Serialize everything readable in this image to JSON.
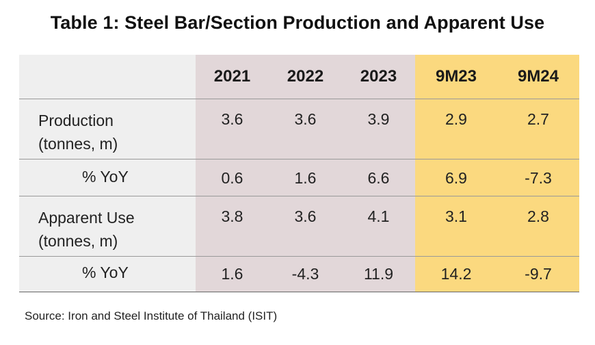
{
  "title": "Table 1: Steel Bar/Section Production and Apparent Use",
  "columns": [
    "2021",
    "2022",
    "2023",
    "9M23",
    "9M24"
  ],
  "rows": [
    {
      "label_line1": "Production",
      "label_line2": "(tonnes, m)",
      "values": [
        "3.6",
        "3.6",
        "3.9",
        "2.9",
        "2.7"
      ]
    },
    {
      "label_line1": "% YoY",
      "label_line2": "",
      "values": [
        "0.6",
        "1.6",
        "6.6",
        "6.9",
        "-7.3"
      ]
    },
    {
      "label_line1": "Apparent Use",
      "label_line2": "(tonnes, m)",
      "values": [
        "3.8",
        "3.6",
        "4.1",
        "3.1",
        "2.8"
      ]
    },
    {
      "label_line1": "% YoY",
      "label_line2": "",
      "values": [
        "1.6",
        "-4.3",
        "11.9",
        "14.2",
        "-9.7"
      ]
    }
  ],
  "source": "Source: Iron and Steel Institute of Thailand (ISIT)",
  "colors": {
    "label_bg": "#efefef",
    "historical_bg": "#e2d7d9",
    "ytd_bg": "#fbd97f"
  }
}
